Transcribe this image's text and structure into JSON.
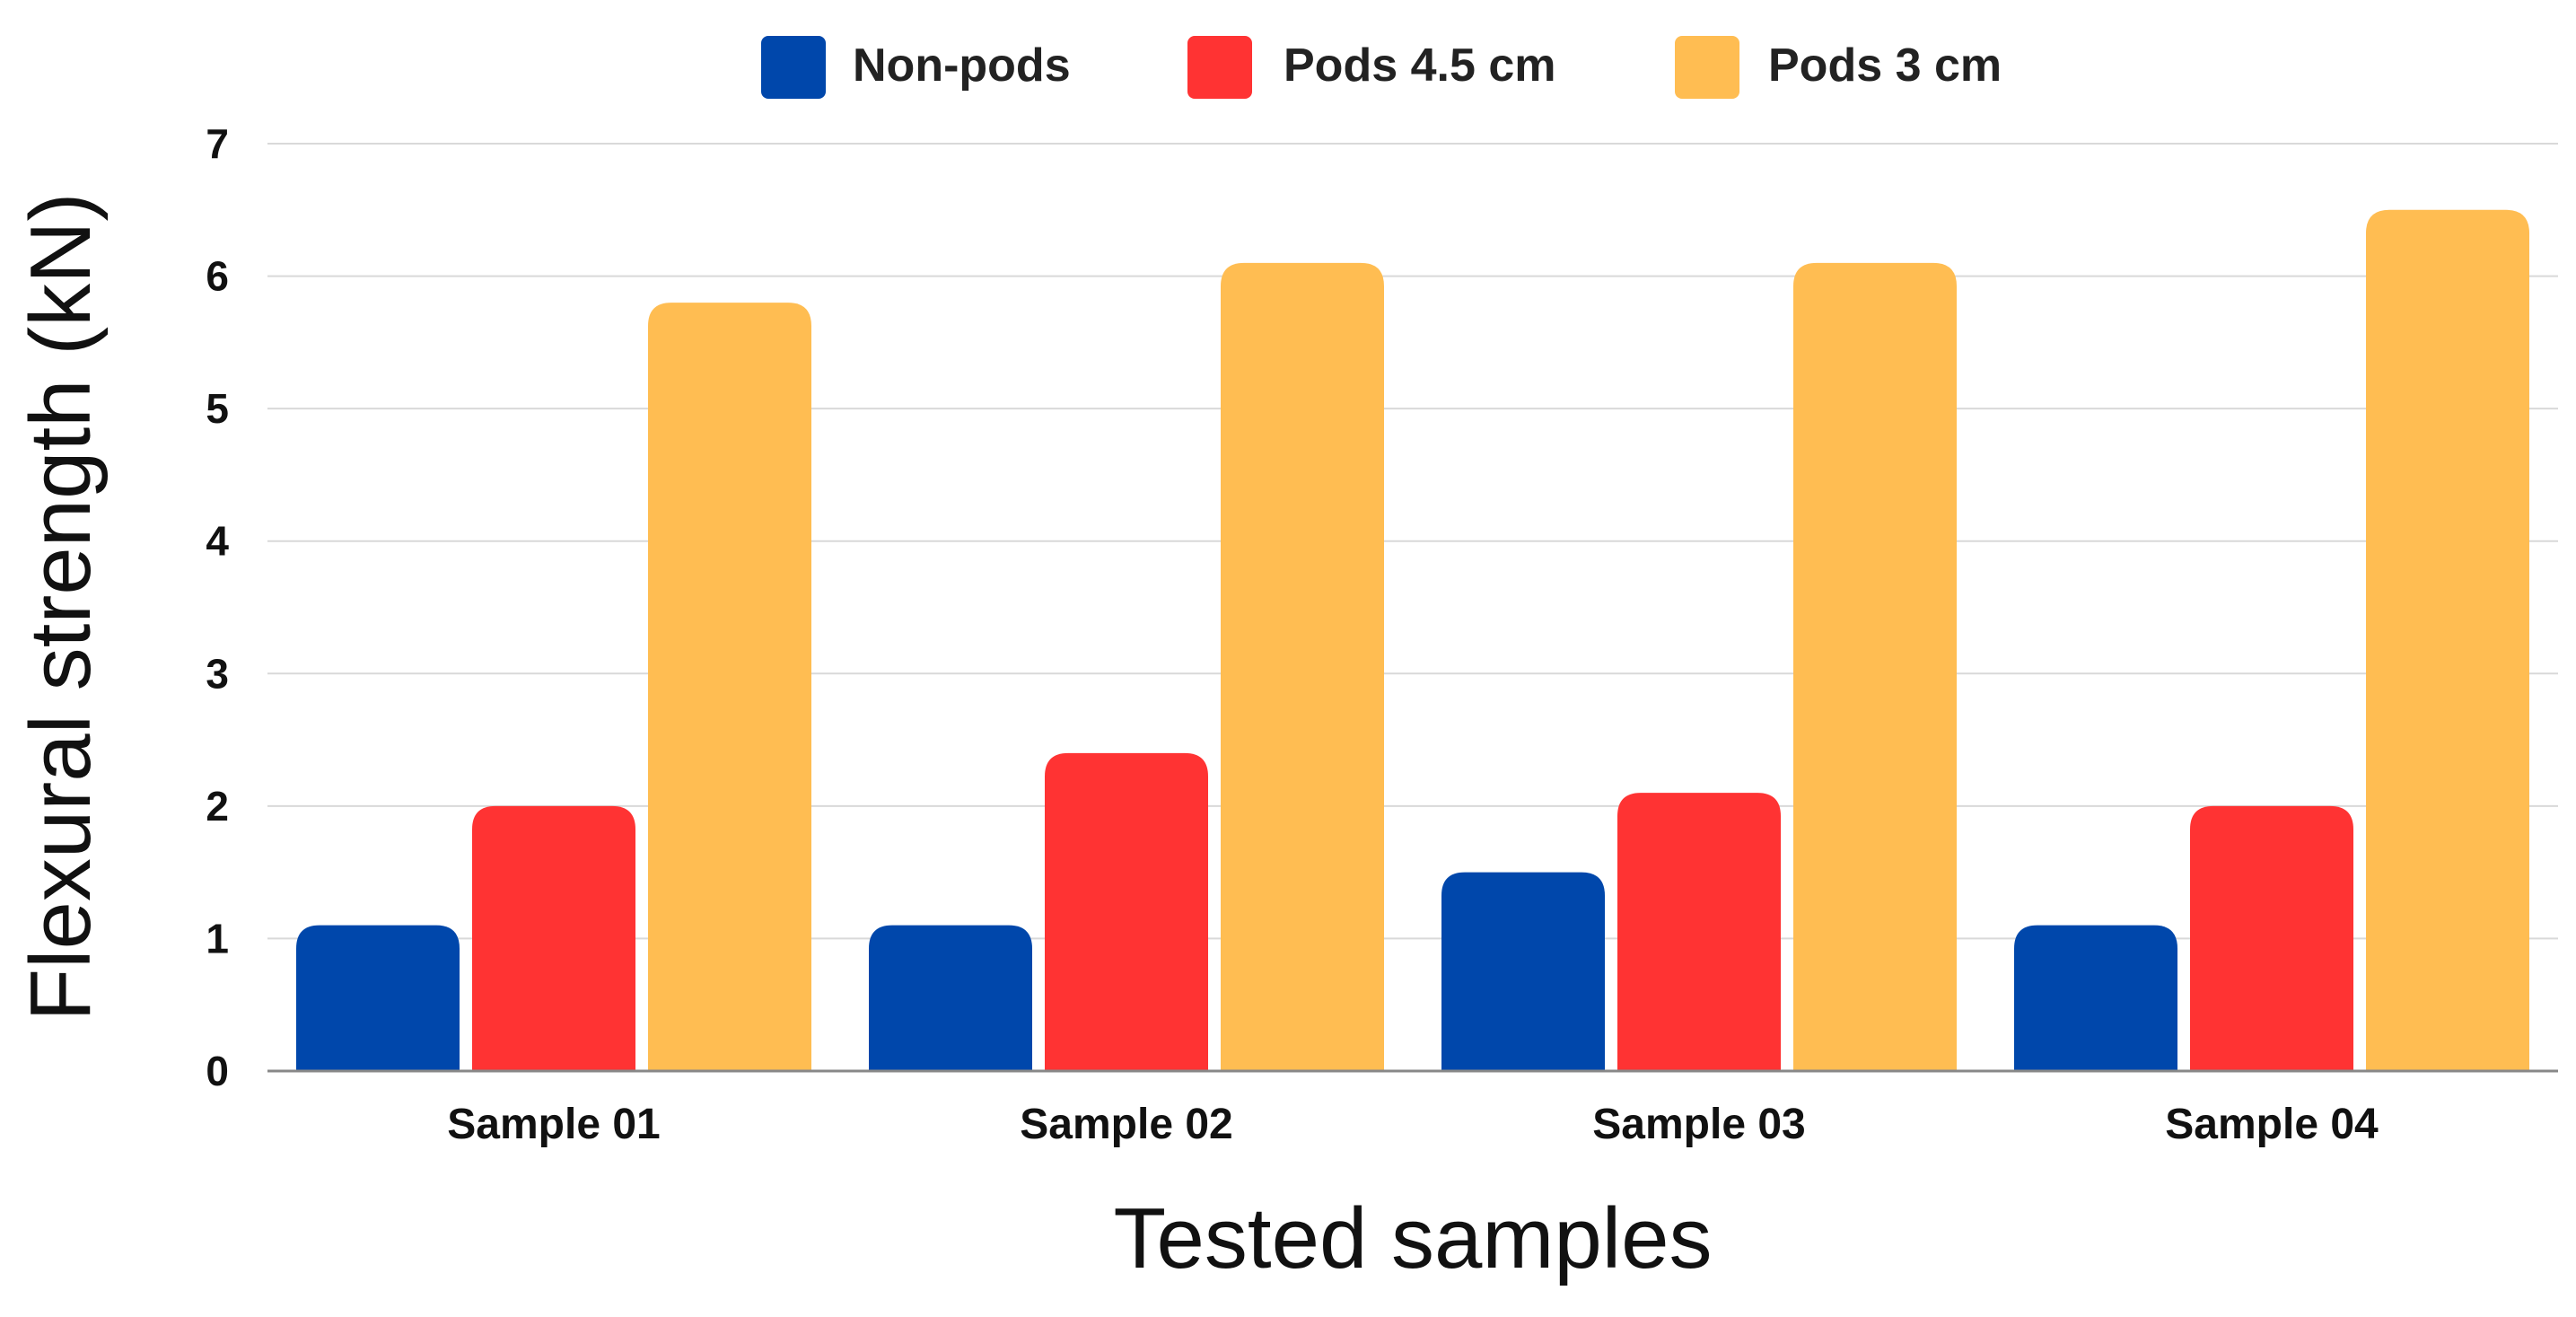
{
  "chart_data": {
    "type": "bar",
    "title": "",
    "xlabel": "Tested samples",
    "ylabel": "Flexural strength (kN)",
    "ylim": [
      0,
      7
    ],
    "yticks": [
      0,
      1,
      2,
      3,
      4,
      5,
      6,
      7
    ],
    "grid": true,
    "legend_position": "top-center",
    "categories": [
      "Sample 01",
      "Sample 02",
      "Sample 03",
      "Sample 04"
    ],
    "series": [
      {
        "name": "Non-pods",
        "color": "#0047AB",
        "values": [
          1.1,
          1.1,
          1.5,
          1.1
        ]
      },
      {
        "name": "Pods 4.5 cm",
        "color": "#FF3333",
        "values": [
          2.0,
          2.4,
          2.1,
          2.0
        ]
      },
      {
        "name": "Pods 3 cm",
        "color": "#FFBD52",
        "values": [
          5.8,
          6.1,
          6.1,
          6.5
        ]
      }
    ]
  },
  "colors": {
    "gridline": "#D9D9D9",
    "axis": "#888888"
  }
}
